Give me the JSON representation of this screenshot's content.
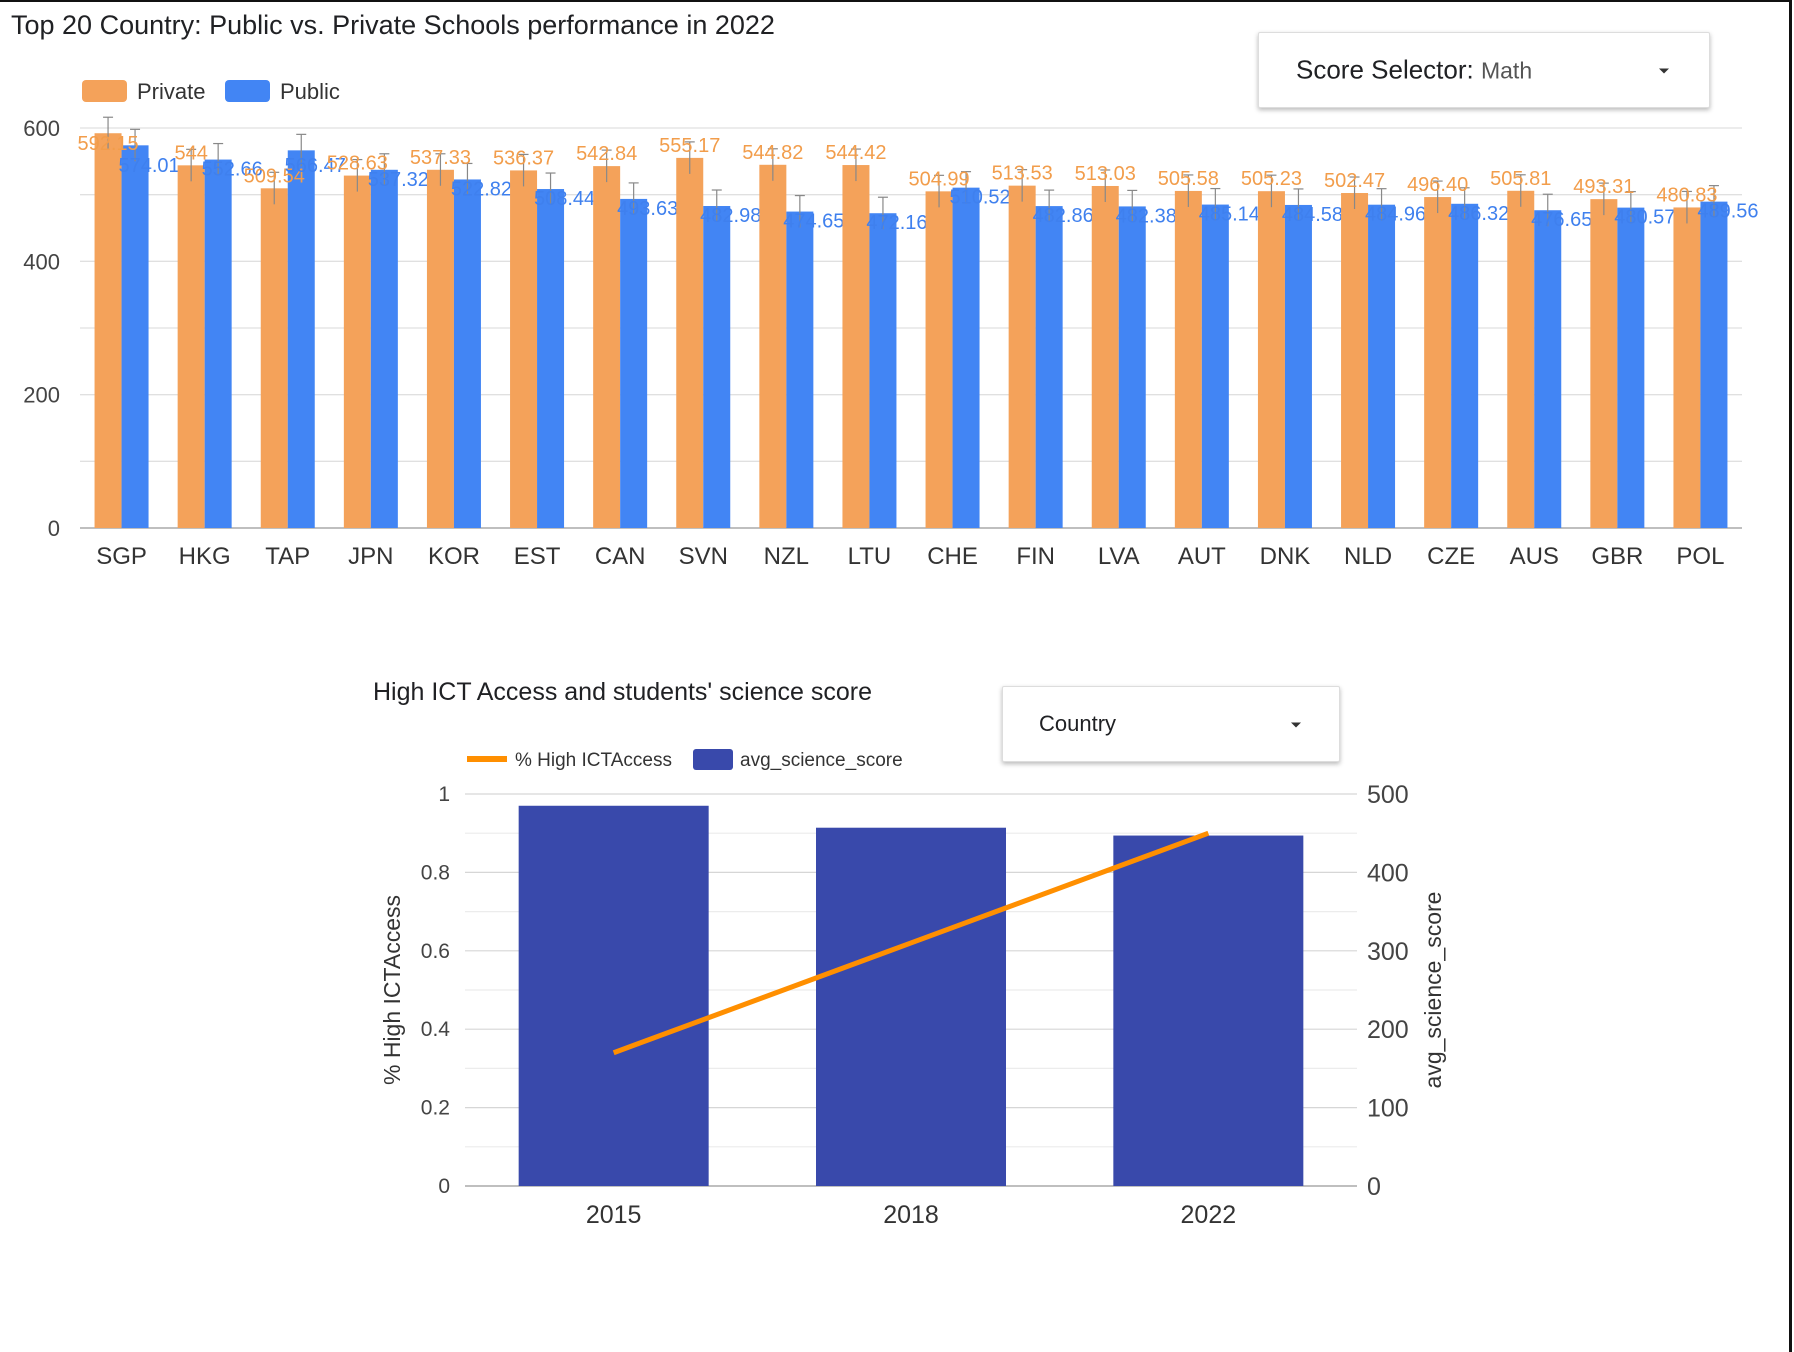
{
  "page": {
    "title_top": "Top 20 Country: Public vs. Private Schools performance in 2022",
    "title_bottom": "High ICT Access and students' science score"
  },
  "selectors": {
    "score_selector_label": "Score Selector",
    "score_selector_value": "Math",
    "country_selector_label": "Country"
  },
  "colors": {
    "private": "#f4a25a",
    "public": "#4285f4",
    "line": "#ff8f00",
    "bar_dark": "#3949ab",
    "private_label": "#f29d4b",
    "public_label": "#3f80ee"
  },
  "chart_data": [
    {
      "type": "bar",
      "title": "Top 20 Country: Public vs. Private Schools performance in 2022",
      "categories": [
        "SGP",
        "HKG",
        "TAP",
        "JPN",
        "KOR",
        "EST",
        "CAN",
        "SVN",
        "NZL",
        "LTU",
        "CHE",
        "FIN",
        "LVA",
        "AUT",
        "DNK",
        "NLD",
        "CZE",
        "AUS",
        "GBR",
        "POL"
      ],
      "series": [
        {
          "name": "Private",
          "values": [
            592.15,
            544.0,
            509.54,
            528.63,
            537.33,
            536.37,
            542.84,
            555.17,
            544.82,
            544.42,
            504.99,
            513.53,
            513.03,
            505.58,
            505.23,
            502.47,
            496.4,
            505.81,
            493.31,
            480.83
          ],
          "labels": [
            "592.15",
            "544",
            "509.54",
            "528.63",
            "537.33",
            "536.37",
            "542.84",
            "555.17",
            "544.82",
            "544.42",
            "504.99",
            "513.53",
            "513.03",
            "505.58",
            "505.23",
            "502.47",
            "496.40",
            "505.81",
            "493.31",
            "480.83"
          ]
        },
        {
          "name": "Public",
          "values": [
            574.01,
            552.66,
            566.47,
            537.32,
            522.82,
            508.44,
            493.63,
            482.98,
            474.65,
            472.16,
            510.52,
            482.86,
            482.38,
            485.14,
            484.58,
            484.96,
            486.32,
            476.65,
            480.57,
            489.56
          ],
          "labels": [
            "574.01",
            "552.66",
            "566.47",
            "537.32",
            "522.82",
            "508.44",
            "493.63",
            "482.98",
            "474.65",
            "472.16",
            "510.52",
            "482.86",
            "482.38",
            "485.14",
            "484.58",
            "484.96",
            "486.32",
            "476.65",
            "480.57",
            "489.56"
          ]
        }
      ],
      "ylim": [
        0,
        600
      ],
      "yticks": [
        0,
        200,
        400,
        600
      ],
      "xlabel": "",
      "ylabel": "",
      "legend": "top-left",
      "grid": true
    },
    {
      "type": "combo",
      "title": "High ICT Access and students' science score",
      "categories": [
        "2015",
        "2018",
        "2022"
      ],
      "bars": {
        "name": "avg_science_score",
        "values": [
          485,
          457,
          447
        ]
      },
      "line": {
        "name": "% High ICTAccess",
        "values": [
          0.34,
          0.62,
          0.9
        ]
      },
      "y_left": {
        "label": "% High ICTAccess",
        "ylim": [
          0,
          1
        ],
        "ticks": [
          "0",
          "0.2",
          "0.4",
          "0.6",
          "0.8",
          "1"
        ]
      },
      "y_right": {
        "label": "avg_science_score",
        "ylim": [
          0,
          500
        ],
        "ticks": [
          "0",
          "100",
          "200",
          "300",
          "400",
          "500"
        ]
      },
      "legend_items": [
        "% High ICTAccess",
        "avg_science_score"
      ],
      "legend": "top",
      "grid": true
    }
  ]
}
